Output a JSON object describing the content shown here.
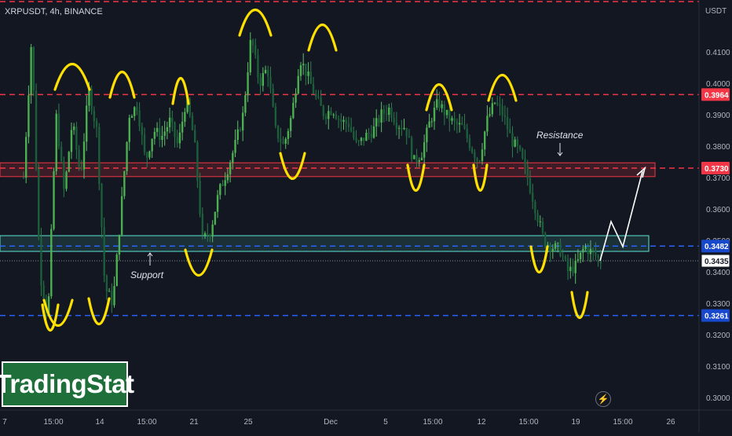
{
  "header": {
    "symbol": "XRPUSDT, 4h, BINANCE",
    "currency": "USDT"
  },
  "watermark": "TradingStat",
  "colors": {
    "bg": "#131722",
    "up": "#26a69a",
    "down": "#1e6b3a",
    "candle": "#2e8b57",
    "red": "#f23645",
    "blue": "#2962ff",
    "yellow": "#ffe000",
    "cyan": "#5ee4d2",
    "price_tag_current": "#ffffff"
  },
  "chart_data": {
    "type": "candlestick",
    "ylim": [
      0.296,
      0.4265
    ],
    "y_ticks": [
      0.41,
      0.4,
      0.39,
      0.38,
      0.37,
      0.36,
      0.35,
      0.34,
      0.33,
      0.32,
      0.31,
      0.3
    ],
    "x_ticks": [
      "7",
      "15:00",
      "14",
      "15:00",
      "21",
      "25",
      "Dec",
      "5",
      "15:00",
      "12",
      "15:00",
      "19",
      "15:00",
      "26"
    ],
    "price_tags": [
      {
        "value": 0.3964,
        "label": "0.3964",
        "style": "red"
      },
      {
        "value": 0.373,
        "label": "0.3730",
        "style": "red"
      },
      {
        "value": 0.3482,
        "label": "0.3482",
        "style": "blue"
      },
      {
        "value": 0.3435,
        "label": "0.3435",
        "style": "current"
      },
      {
        "value": 0.3261,
        "label": "0.3261",
        "style": "blue"
      }
    ],
    "horizontal_lines": [
      {
        "value": 0.426,
        "style": "red-dashed"
      },
      {
        "value": 0.3964,
        "style": "red-dashed"
      },
      {
        "value": 0.373,
        "style": "red-dashed"
      },
      {
        "value": 0.3482,
        "style": "blue-dashed"
      },
      {
        "value": 0.3261,
        "style": "blue-dashed"
      }
    ],
    "zones": [
      {
        "name": "Resistance",
        "top": 0.3747,
        "bottom": 0.3703,
        "color": "red"
      },
      {
        "name": "Support",
        "top": 0.3515,
        "bottom": 0.3465,
        "color": "cyan"
      }
    ],
    "annotations": [
      {
        "text": "Resistance",
        "at": 0.3795
      },
      {
        "text": "Support",
        "at": 0.3435
      }
    ],
    "price_path": [
      0.37,
      0.415,
      0.34,
      0.325,
      0.39,
      0.365,
      0.388,
      0.37,
      0.398,
      0.385,
      0.335,
      0.33,
      0.36,
      0.39,
      0.393,
      0.375,
      0.385,
      0.383,
      0.388,
      0.38,
      0.395,
      0.382,
      0.35,
      0.353,
      0.365,
      0.372,
      0.38,
      0.39,
      0.415,
      0.4,
      0.405,
      0.385,
      0.38,
      0.39,
      0.408,
      0.402,
      0.395,
      0.39,
      0.392,
      0.388,
      0.387,
      0.38,
      0.383,
      0.385,
      0.39,
      0.392,
      0.387,
      0.386,
      0.375,
      0.378,
      0.388,
      0.394,
      0.39,
      0.387,
      0.386,
      0.38,
      0.375,
      0.388,
      0.394,
      0.39,
      0.382,
      0.378,
      0.37,
      0.36,
      0.35,
      0.348,
      0.347,
      0.34,
      0.342,
      0.348,
      0.346,
      0.3435
    ],
    "projection": [
      0.3435,
      0.356,
      0.348,
      0.372
    ]
  }
}
